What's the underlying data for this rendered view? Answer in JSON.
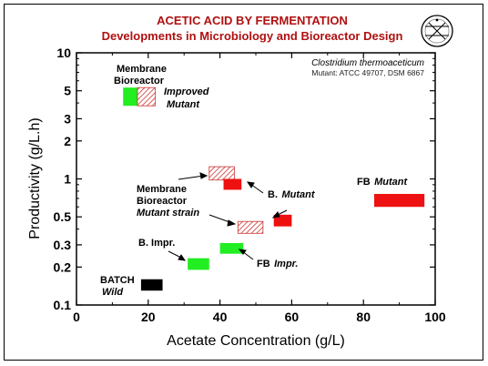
{
  "chart_data": {
    "type": "bar",
    "title": "ACETIC ACID BY FERMENTATION",
    "subtitle": "Developments in Microbiology and Bioreactor Design",
    "xlabel": "Acetate Concentration (g/L)",
    "ylabel": "Productivity (g/L.h)",
    "xlim": [
      0,
      100
    ],
    "ylim": [
      0.1,
      10
    ],
    "y_scale": "log",
    "grid": false,
    "x_ticks": [
      "0",
      "20",
      "40",
      "60",
      "80",
      "100"
    ],
    "y_ticks": [
      {
        "value": 10,
        "label": "10"
      },
      {
        "value": 5,
        "label": "5"
      },
      {
        "value": 3,
        "label": "3"
      },
      {
        "value": 2,
        "label": "2"
      },
      {
        "value": 1,
        "label": "1"
      },
      {
        "value": 0.5,
        "label": "0.5"
      },
      {
        "value": 0.3,
        "label": "0.3"
      },
      {
        "value": 0.2,
        "label": "0.2"
      },
      {
        "value": 0.1,
        "label": "0.1"
      }
    ],
    "organism": "Clostridium thermoaceticum",
    "strain": "Mutant: ATCC 49707, DSM 6867",
    "regions": [
      {
        "id": "batch-wild",
        "x": [
          18,
          24
        ],
        "y": [
          0.13,
          0.16
        ],
        "fill": "#000000"
      },
      {
        "id": "batch-improved",
        "x": [
          31,
          37
        ],
        "y": [
          0.19,
          0.235
        ],
        "fill": "#22ee22"
      },
      {
        "id": "fb-improved",
        "x": [
          40,
          46.5
        ],
        "y": [
          0.255,
          0.31
        ],
        "fill": "#22ee22"
      },
      {
        "id": "batch-mutant",
        "x": [
          55,
          60
        ],
        "y": [
          0.42,
          0.52
        ],
        "fill": "#ee1111"
      },
      {
        "id": "fb-mutant",
        "x": [
          83,
          97
        ],
        "y": [
          0.6,
          0.76
        ],
        "fill": "#ee1111"
      },
      {
        "id": "membrane-mutant-strain",
        "x": [
          45,
          52
        ],
        "y": [
          0.37,
          0.46
        ],
        "fill": "hatch"
      },
      {
        "id": "membrane-improved-upper",
        "x": [
          37,
          44
        ],
        "y": [
          0.98,
          1.25
        ],
        "fill": "hatch"
      },
      {
        "id": "membrane-mutant-red",
        "x": [
          41,
          46
        ],
        "y": [
          0.82,
          1.0
        ],
        "fill": "#ee1111"
      },
      {
        "id": "membrane-bioreactor-green",
        "x": [
          13,
          17
        ],
        "y": [
          3.8,
          5.3
        ],
        "fill": "#22ee22"
      },
      {
        "id": "membrane-bioreactor-hatch",
        "x": [
          17,
          22
        ],
        "y": [
          3.8,
          5.3
        ],
        "fill": "hatch"
      }
    ],
    "annotations": [
      {
        "lines": [
          "BATCH"
        ],
        "italic": false
      },
      {
        "lines": [
          "Wild"
        ],
        "italic": true
      },
      {
        "lines": [
          "B. Impr."
        ],
        "italic": false
      },
      {
        "lines": [
          "FB"
        ],
        "italic": false
      },
      {
        "lines": [
          "Impr."
        ],
        "italic": true
      },
      {
        "lines": [
          "B."
        ],
        "italic": false
      },
      {
        "lines": [
          "Mutant"
        ],
        "italic": true
      },
      {
        "lines": [
          "FB"
        ],
        "italic": false
      },
      {
        "lines": [
          "Mutant"
        ],
        "italic": true
      },
      {
        "lines": [
          "Membrane",
          "Bioreactor"
        ],
        "italic": false
      },
      {
        "lines": [
          "Mutant strain"
        ],
        "italic": true
      },
      {
        "lines": [
          "Membrane",
          "Bioreactor"
        ],
        "italic": false
      },
      {
        "lines": [
          "Improved",
          "Mutant"
        ],
        "italic": true
      }
    ],
    "colors": {
      "title": "#b01010",
      "green": "#22ee22",
      "red": "#ee1111",
      "hatch": "#cc3333"
    }
  },
  "logo": {
    "icon": "bioreactor-logo-icon"
  }
}
